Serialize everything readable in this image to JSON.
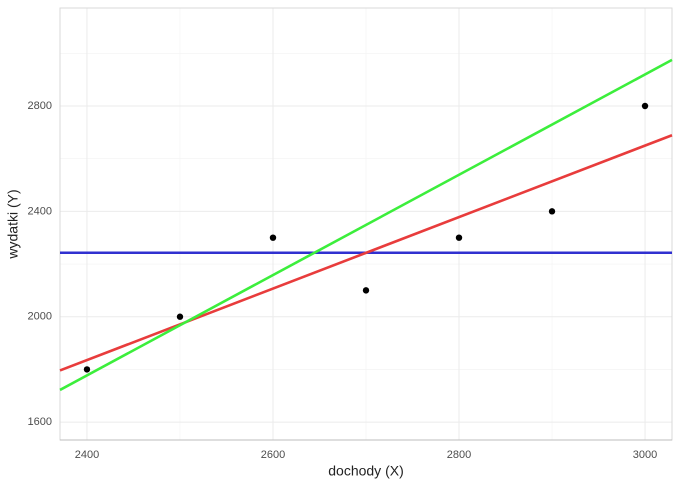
{
  "chart_data": {
    "type": "scatter",
    "x_label": "dochody (X)",
    "y_label": "wydatki (Y)",
    "x": [
      2400,
      2500,
      2600,
      2700,
      2800,
      2900,
      3000
    ],
    "values": [
      1800,
      2000,
      2300,
      2100,
      2300,
      2400,
      2800
    ],
    "color": "#000000",
    "lines": [
      {
        "color": "#3030d0",
        "x": [
          2371,
          3029
        ],
        "values": [
          2242.86,
          2242.86
        ]
      },
      {
        "color": "#e83c3c",
        "x": [
          2371,
          3029
        ],
        "values": [
          1796,
          2689
        ]
      },
      {
        "color": "#3cee3c",
        "x": [
          2371,
          3029
        ],
        "values": [
          1722,
          2975
        ]
      }
    ],
    "xlim": [
      2371,
      3029
    ],
    "ylim": [
      1532,
      3172
    ],
    "xticks": [
      2400,
      2600,
      2800,
      3000
    ],
    "yticks": [
      1600,
      2000,
      2400,
      2800
    ],
    "grid": true,
    "minor_grid": true
  }
}
